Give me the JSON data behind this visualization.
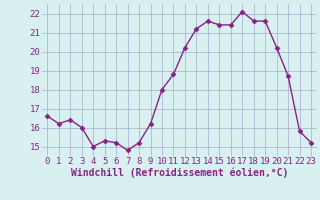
{
  "x": [
    0,
    1,
    2,
    3,
    4,
    5,
    6,
    7,
    8,
    9,
    10,
    11,
    12,
    13,
    14,
    15,
    16,
    17,
    18,
    19,
    20,
    21,
    22,
    23
  ],
  "y": [
    16.6,
    16.2,
    16.4,
    16.0,
    15.0,
    15.3,
    15.2,
    14.8,
    15.2,
    16.2,
    18.0,
    18.8,
    20.2,
    21.2,
    21.6,
    21.4,
    21.4,
    22.1,
    21.6,
    21.6,
    20.2,
    18.7,
    15.8,
    15.2
  ],
  "line_color": "#882288",
  "marker": "D",
  "marker_size": 2.5,
  "bg_color": "#d8f0f0",
  "grid_color": "#aaaacc",
  "xlabel": "Windchill (Refroidissement éolien,°C)",
  "xlabel_color": "#882288",
  "xlabel_fontsize": 7,
  "tick_color": "#882288",
  "tick_fontsize": 6.5,
  "ylim": [
    14.5,
    22.5
  ],
  "yticks": [
    15,
    16,
    17,
    18,
    19,
    20,
    21,
    22
  ],
  "xlim": [
    -0.5,
    23.5
  ],
  "xticks": [
    0,
    1,
    2,
    3,
    4,
    5,
    6,
    7,
    8,
    9,
    10,
    11,
    12,
    13,
    14,
    15,
    16,
    17,
    18,
    19,
    20,
    21,
    22,
    23
  ],
  "linewidth": 1.0
}
